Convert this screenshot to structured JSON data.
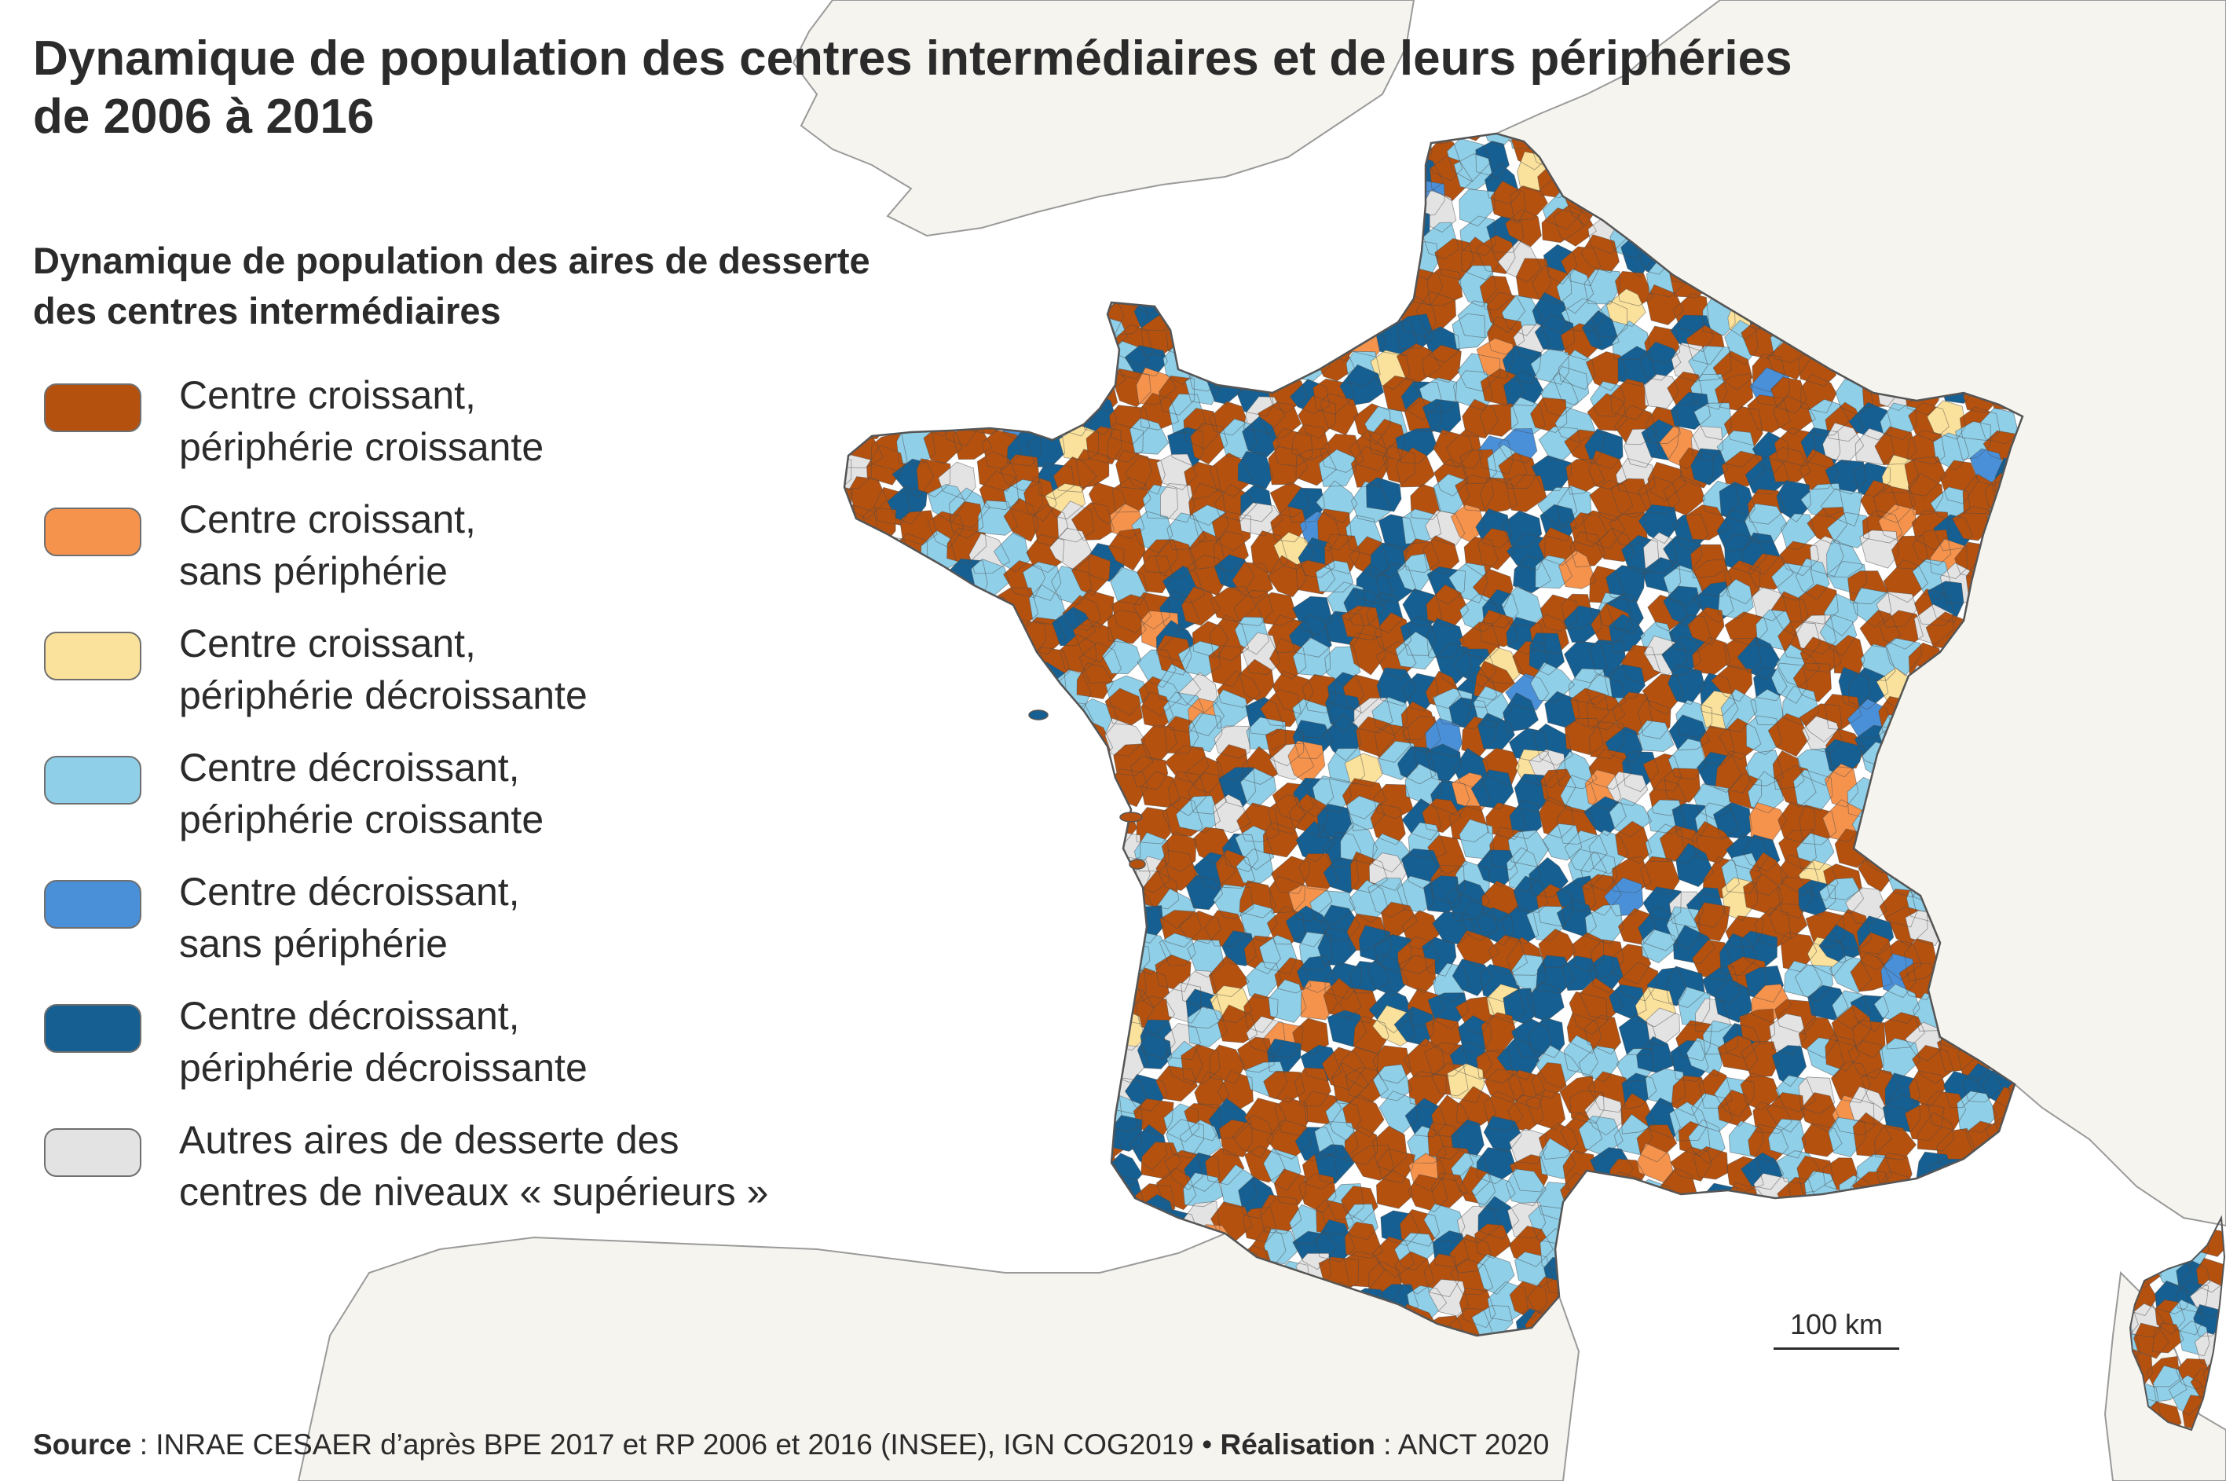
{
  "title": {
    "line1": "Dynamique de population des centres intermédiaires et de leurs périphéries",
    "line2": "de 2006 à 2016"
  },
  "legend": {
    "title_line1": "Dynamique de population des aires de desserte",
    "title_line2": "des centres intermédiaires",
    "items": [
      {
        "label": "Centre croissant,\npériphérie croissante",
        "color": "#b5510f"
      },
      {
        "label": "Centre croissant,\nsans périphérie",
        "color": "#f5934d"
      },
      {
        "label": "Centre croissant,\npériphérie décroissante",
        "color": "#fbe29c"
      },
      {
        "label": "Centre décroissant,\npériphérie croissante",
        "color": "#8fcfe8"
      },
      {
        "label": "Centre décroissant,\nsans périphérie",
        "color": "#4a90d9"
      },
      {
        "label": "Centre décroissant,\npériphérie décroissante",
        "color": "#155f92"
      },
      {
        "label": "Autres aires de desserte des\ncentres de niveaux « supérieurs »",
        "color": "#e3e3e3"
      }
    ]
  },
  "scale": {
    "label": "100 km"
  },
  "source": {
    "source_label": "Source",
    "source_text": " : INRAE CESAER d’après BPE 2017 et RP 2006 et 2016 (INSEE), IGN COG2019 • ",
    "realisation_label": "Réalisation",
    "realisation_text": " : ANCT 2020"
  },
  "map": {
    "land_color": "#f6f4ef",
    "sea_color": "#ffffff",
    "border_color": "#9a9a9a"
  }
}
